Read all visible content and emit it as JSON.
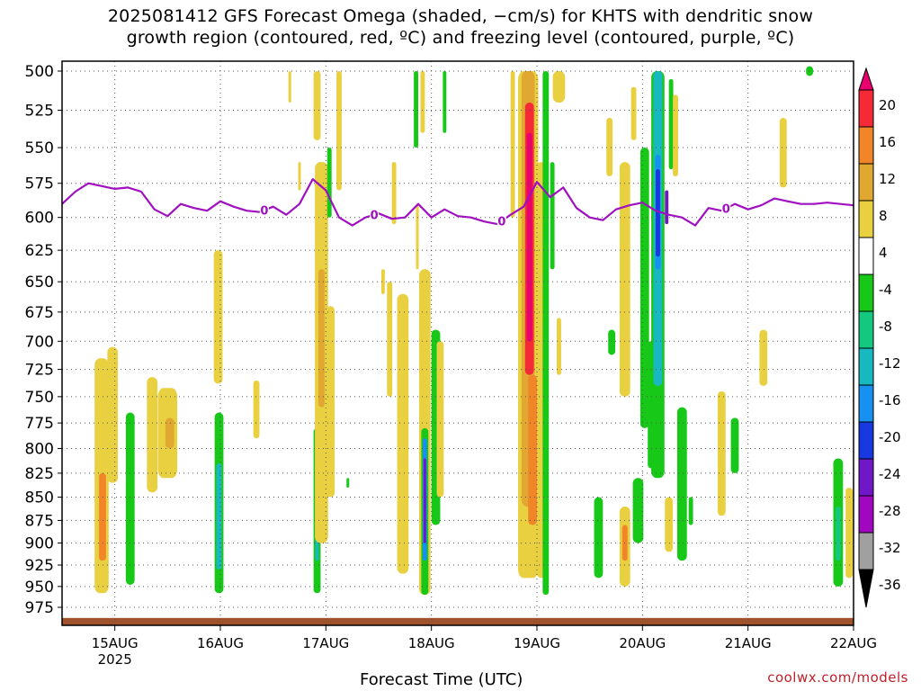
{
  "title": {
    "line1": "2025081412 GFS Forecast Omega (shaded, −cm/s) for KHTS with dendritic snow",
    "line2": "growth region (contoured, red, ºC) and freezing level (contoured, purple, ºC)"
  },
  "watermark": "coolwx.com/models",
  "chart_data": {
    "type": "heatmap",
    "xlabel": "Forecast Time (UTC)",
    "x_ticks": [
      {
        "label": "15AUG",
        "sublabel": "2025",
        "hours": 12
      },
      {
        "label": "16AUG",
        "hours": 36
      },
      {
        "label": "17AUG",
        "hours": 60
      },
      {
        "label": "18AUG",
        "hours": 84
      },
      {
        "label": "19AUG",
        "hours": 108
      },
      {
        "label": "20AUG",
        "hours": 132
      },
      {
        "label": "21AUG",
        "hours": 156
      },
      {
        "label": "22AUG",
        "hours": 180
      }
    ],
    "xlim_hours": [
      0,
      180
    ],
    "y_ticks": [
      500,
      525,
      550,
      575,
      600,
      625,
      650,
      675,
      700,
      725,
      750,
      775,
      800,
      825,
      850,
      875,
      900,
      925,
      950,
      975
    ],
    "ylim_hPa": [
      492,
      1000
    ],
    "y_log_scale": true,
    "grid": true,
    "colorbar": {
      "labels": [
        "20",
        "16",
        "12",
        "8",
        "4",
        "-4",
        "-8",
        "-12",
        "-16",
        "-20",
        "-24",
        "-28",
        "-32",
        "-36"
      ],
      "colors": [
        "#e8006e",
        "#f52a36",
        "#f08628",
        "#e0a830",
        "#e8d040",
        "#ffffff",
        "#18c818",
        "#14c880",
        "#18b8c0",
        "#1890f0",
        "#1838e0",
        "#7018c8",
        "#a008c0",
        "#a0a0a0",
        "#000000"
      ]
    },
    "freezing_level": {
      "label": "0",
      "color": "#a010c0",
      "hours": [
        0,
        3,
        6,
        9,
        12,
        15,
        18,
        21,
        24,
        27,
        30,
        33,
        36,
        39,
        42,
        45,
        48,
        51,
        54,
        57,
        60,
        63,
        66,
        69,
        72,
        75,
        78,
        81,
        84,
        87,
        90,
        93,
        96,
        99,
        102,
        105,
        108,
        111,
        114,
        117,
        120,
        123,
        126,
        129,
        132,
        135,
        138,
        141,
        144,
        147,
        150,
        153,
        156,
        159,
        162,
        165,
        168,
        171,
        174,
        177,
        180
      ],
      "hPa": [
        590,
        581,
        575,
        577,
        579,
        578,
        581,
        594,
        599,
        590,
        593,
        595,
        588,
        592,
        595,
        596,
        592,
        598,
        590,
        572,
        580,
        600,
        606,
        600,
        597,
        601,
        600,
        590,
        600,
        594,
        599,
        600,
        603,
        605,
        598,
        592,
        574,
        585,
        578,
        593,
        600,
        602,
        594,
        591,
        589,
        595,
        598,
        600,
        606,
        593,
        595,
        590,
        594,
        591,
        586,
        588,
        590,
        590,
        589,
        590,
        591
      ],
      "label_hours": [
        46,
        71,
        100,
        151
      ]
    },
    "terrain_hPa": 988,
    "omega_features": [
      {
        "hour": 9.0,
        "top": 715,
        "bottom": 958,
        "halfwidth": 1.6,
        "cls": 4
      },
      {
        "hour": 9.2,
        "top": 825,
        "bottom": 920,
        "halfwidth": 0.8,
        "cls": 12
      },
      {
        "hour": 11.5,
        "top": 705,
        "bottom": 835,
        "halfwidth": 1.2,
        "cls": 4
      },
      {
        "hour": 15.5,
        "top": 765,
        "bottom": 948,
        "halfwidth": 1.0,
        "cls": -4
      },
      {
        "hour": 20.5,
        "top": 732,
        "bottom": 845,
        "halfwidth": 1.2,
        "cls": 4
      },
      {
        "hour": 24.0,
        "top": 742,
        "bottom": 830,
        "halfwidth": 2.2,
        "cls": 4
      },
      {
        "hour": 24.5,
        "top": 770,
        "bottom": 800,
        "halfwidth": 1.0,
        "cls": 8
      },
      {
        "hour": 35.5,
        "top": 625,
        "bottom": 738,
        "halfwidth": 1.0,
        "cls": 4
      },
      {
        "hour": 35.7,
        "top": 765,
        "bottom": 958,
        "halfwidth": 1.0,
        "cls": -4
      },
      {
        "hour": 35.7,
        "top": 815,
        "bottom": 930,
        "halfwidth": 0.6,
        "cls": -12
      },
      {
        "hour": 44.2,
        "top": 735,
        "bottom": 790,
        "halfwidth": 0.7,
        "cls": 4
      },
      {
        "hour": 51.8,
        "top": 500,
        "bottom": 520,
        "halfwidth": 0.3,
        "cls": 4
      },
      {
        "hour": 54.0,
        "top": 560,
        "bottom": 580,
        "halfwidth": 0.3,
        "cls": 4
      },
      {
        "hour": 58.0,
        "top": 500,
        "bottom": 545,
        "halfwidth": 0.8,
        "cls": 4
      },
      {
        "hour": 58.0,
        "top": 780,
        "bottom": 958,
        "halfwidth": 0.8,
        "cls": -4
      },
      {
        "hour": 58.0,
        "top": 830,
        "bottom": 920,
        "halfwidth": 0.4,
        "cls": -12
      },
      {
        "hour": 59.0,
        "top": 560,
        "bottom": 900,
        "halfwidth": 1.5,
        "cls": 4
      },
      {
        "hour": 59.0,
        "top": 640,
        "bottom": 760,
        "halfwidth": 0.7,
        "cls": 8
      },
      {
        "hour": 60.8,
        "top": 550,
        "bottom": 600,
        "halfwidth": 0.5,
        "cls": -4
      },
      {
        "hour": 61.0,
        "top": 670,
        "bottom": 850,
        "halfwidth": 1.0,
        "cls": 4
      },
      {
        "hour": 63.0,
        "top": 500,
        "bottom": 580,
        "halfwidth": 0.6,
        "cls": 4
      },
      {
        "hour": 65.0,
        "top": 830,
        "bottom": 840,
        "halfwidth": 0.2,
        "cls": -4
      },
      {
        "hour": 73.0,
        "top": 640,
        "bottom": 660,
        "halfwidth": 0.4,
        "cls": 4
      },
      {
        "hour": 74.5,
        "top": 650,
        "bottom": 750,
        "halfwidth": 0.6,
        "cls": 4
      },
      {
        "hour": 75.5,
        "top": 560,
        "bottom": 605,
        "halfwidth": 0.5,
        "cls": 4
      },
      {
        "hour": 77.5,
        "top": 660,
        "bottom": 935,
        "halfwidth": 1.3,
        "cls": 4
      },
      {
        "hour": 80.5,
        "top": 500,
        "bottom": 550,
        "halfwidth": 0.5,
        "cls": -4
      },
      {
        "hour": 80.8,
        "top": 590,
        "bottom": 640,
        "halfwidth": 0.3,
        "cls": 4
      },
      {
        "hour": 82.0,
        "top": 500,
        "bottom": 540,
        "halfwidth": 0.5,
        "cls": 4
      },
      {
        "hour": 82.5,
        "top": 640,
        "bottom": 960,
        "halfwidth": 1.3,
        "cls": 4
      },
      {
        "hour": 82.5,
        "top": 780,
        "bottom": 960,
        "halfwidth": 0.8,
        "cls": -4
      },
      {
        "hour": 82.5,
        "top": 790,
        "bottom": 920,
        "halfwidth": 0.5,
        "cls": -16
      },
      {
        "hour": 82.5,
        "top": 810,
        "bottom": 900,
        "halfwidth": 0.3,
        "cls": -24
      },
      {
        "hour": 85.0,
        "top": 690,
        "bottom": 880,
        "halfwidth": 1.0,
        "cls": -4
      },
      {
        "hour": 86.0,
        "top": 700,
        "bottom": 850,
        "halfwidth": 0.8,
        "cls": 4
      },
      {
        "hour": 87.0,
        "top": 500,
        "bottom": 540,
        "halfwidth": 0.4,
        "cls": -4
      },
      {
        "hour": 102.5,
        "top": 500,
        "bottom": 600,
        "halfwidth": 0.5,
        "cls": 4
      },
      {
        "hour": 106.0,
        "top": 500,
        "bottom": 940,
        "halfwidth": 2.3,
        "cls": 4
      },
      {
        "hour": 106.0,
        "top": 500,
        "bottom": 860,
        "halfwidth": 1.5,
        "cls": 8
      },
      {
        "hour": 106.3,
        "top": 520,
        "bottom": 730,
        "halfwidth": 1.0,
        "cls": 16
      },
      {
        "hour": 106.3,
        "top": 540,
        "bottom": 700,
        "halfwidth": 0.6,
        "cls": 20
      },
      {
        "hour": 107.0,
        "top": 730,
        "bottom": 880,
        "halfwidth": 1.0,
        "cls": 12
      },
      {
        "hour": 109.0,
        "top": 560,
        "bottom": 940,
        "halfwidth": 1.0,
        "cls": 4
      },
      {
        "hour": 110.0,
        "top": 500,
        "bottom": 960,
        "halfwidth": 0.7,
        "cls": -4
      },
      {
        "hour": 111.5,
        "top": 560,
        "bottom": 640,
        "halfwidth": 0.5,
        "cls": -4
      },
      {
        "hour": 113.0,
        "top": 500,
        "bottom": 520,
        "halfwidth": 1.4,
        "cls": 4
      },
      {
        "hour": 113.0,
        "top": 680,
        "bottom": 730,
        "halfwidth": 0.5,
        "cls": 4
      },
      {
        "hour": 122.0,
        "top": 850,
        "bottom": 940,
        "halfwidth": 1.0,
        "cls": -4
      },
      {
        "hour": 125.0,
        "top": 690,
        "bottom": 712,
        "halfwidth": 0.8,
        "cls": -4
      },
      {
        "hour": 124.5,
        "top": 530,
        "bottom": 570,
        "halfwidth": 0.7,
        "cls": 4
      },
      {
        "hour": 128.0,
        "top": 560,
        "bottom": 750,
        "halfwidth": 1.2,
        "cls": 4
      },
      {
        "hour": 128.0,
        "top": 860,
        "bottom": 950,
        "halfwidth": 1.2,
        "cls": 4
      },
      {
        "hour": 128.0,
        "top": 880,
        "bottom": 920,
        "halfwidth": 0.6,
        "cls": 12
      },
      {
        "hour": 130.0,
        "top": 510,
        "bottom": 545,
        "halfwidth": 0.6,
        "cls": 4
      },
      {
        "hour": 131.0,
        "top": 830,
        "bottom": 900,
        "halfwidth": 1.2,
        "cls": -4
      },
      {
        "hour": 132.5,
        "top": 550,
        "bottom": 780,
        "halfwidth": 1.0,
        "cls": -4
      },
      {
        "hour": 134.0,
        "top": 700,
        "bottom": 820,
        "halfwidth": 0.8,
        "cls": -4
      },
      {
        "hour": 135.5,
        "top": 500,
        "bottom": 830,
        "halfwidth": 1.5,
        "cls": -4
      },
      {
        "hour": 135.5,
        "top": 500,
        "bottom": 740,
        "halfwidth": 1.0,
        "cls": -12
      },
      {
        "hour": 135.5,
        "top": 555,
        "bottom": 640,
        "halfwidth": 0.6,
        "cls": -16
      },
      {
        "hour": 135.5,
        "top": 565,
        "bottom": 630,
        "halfwidth": 0.5,
        "cls": -20
      },
      {
        "hour": 137.5,
        "top": 580,
        "bottom": 605,
        "halfwidth": 0.4,
        "cls": -24
      },
      {
        "hour": 138.5,
        "top": 505,
        "bottom": 565,
        "halfwidth": 0.5,
        "cls": -4
      },
      {
        "hour": 138.0,
        "top": 850,
        "bottom": 910,
        "halfwidth": 0.9,
        "cls": 4
      },
      {
        "hour": 139.5,
        "top": 515,
        "bottom": 570,
        "halfwidth": 0.6,
        "cls": 4
      },
      {
        "hour": 141.0,
        "top": 760,
        "bottom": 920,
        "halfwidth": 1.1,
        "cls": -4
      },
      {
        "hour": 143.0,
        "top": 850,
        "bottom": 880,
        "halfwidth": 0.5,
        "cls": -4
      },
      {
        "hour": 150.0,
        "top": 745,
        "bottom": 870,
        "halfwidth": 0.9,
        "cls": 4
      },
      {
        "hour": 153.0,
        "top": 770,
        "bottom": 825,
        "halfwidth": 0.9,
        "cls": -4
      },
      {
        "hour": 159.5,
        "top": 690,
        "bottom": 740,
        "halfwidth": 0.9,
        "cls": 4
      },
      {
        "hour": 164.0,
        "top": 530,
        "bottom": 578,
        "halfwidth": 0.8,
        "cls": 4
      },
      {
        "hour": 170.0,
        "top": 497,
        "bottom": 503,
        "halfwidth": 0.8,
        "cls": -4
      },
      {
        "hour": 176.5,
        "top": 810,
        "bottom": 950,
        "halfwidth": 1.1,
        "cls": -4
      },
      {
        "hour": 176.5,
        "top": 860,
        "bottom": 920,
        "halfwidth": 0.6,
        "cls": -8
      },
      {
        "hour": 179.0,
        "top": 840,
        "bottom": 940,
        "halfwidth": 0.8,
        "cls": 4
      }
    ]
  }
}
